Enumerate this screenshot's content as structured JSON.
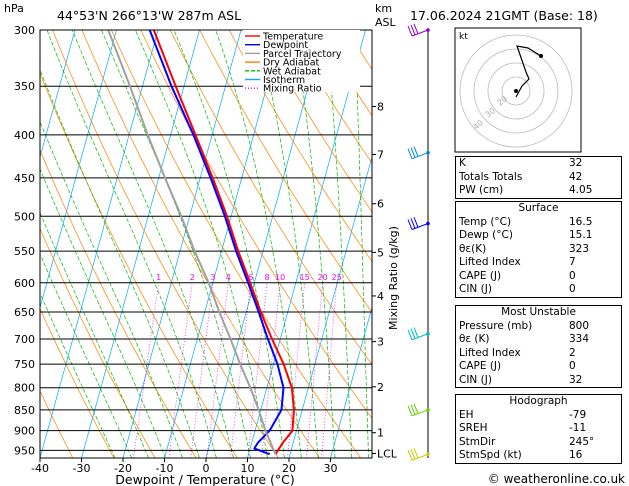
{
  "header": {
    "hpa_label": "hPa",
    "location": "44°53'N  266°13'W  287m  ASL",
    "km_label": "km",
    "asl_label": "ASL",
    "datetime": "17.06.2024  21GMT  (Base: 18)"
  },
  "chart_data": {
    "type": "skew-t",
    "xlabel": "Dewpoint / Temperature (°C)",
    "ylabel": "Mixing Ratio (g/kg)",
    "xlim": [
      -40,
      40
    ],
    "x_ticks": [
      -40,
      -30,
      -20,
      -10,
      0,
      10,
      20,
      30
    ],
    "p_ticks": [
      300,
      350,
      400,
      450,
      500,
      550,
      600,
      650,
      700,
      750,
      800,
      850,
      900,
      950
    ],
    "plim": [
      300,
      970
    ],
    "km_ticks": [
      {
        "label": "8",
        "p": 370
      },
      {
        "label": "7",
        "p": 422
      },
      {
        "label": "6",
        "p": 483
      },
      {
        "label": "5",
        "p": 552
      },
      {
        "label": "4",
        "p": 622
      },
      {
        "label": "3",
        "p": 705
      },
      {
        "label": "2",
        "p": 798
      },
      {
        "label": "1",
        "p": 905
      },
      {
        "label": "LCL",
        "p": 958
      }
    ],
    "mixing_ratio_labels": [
      "1",
      "2",
      "3",
      "4",
      "6",
      "8",
      "10",
      "15",
      "20",
      "25"
    ],
    "legend": [
      "Temperature",
      "Dewpoint",
      "Parcel Trajectory",
      "Dry Adiabat",
      "Wet Adiabat",
      "Isotherm",
      "Mixing Ratio"
    ],
    "colors": {
      "Temperature": "#ff0000",
      "Dewpoint": "#0000ff",
      "Parcel Trajectory": "#a0a0a0",
      "Dry Adiabat": "#ff8000",
      "Wet Adiabat": "#00bb00",
      "Isotherm": "#00aaff",
      "Mixing Ratio": "#ff00ff"
    },
    "series": [
      {
        "name": "Temperature",
        "points": [
          [
            960,
            16.5
          ],
          [
            930,
            17.5
          ],
          [
            900,
            19
          ],
          [
            850,
            18
          ],
          [
            800,
            16
          ],
          [
            750,
            12.5
          ],
          [
            700,
            8
          ],
          [
            650,
            3.5
          ],
          [
            600,
            -1
          ],
          [
            550,
            -6
          ],
          [
            500,
            -11
          ],
          [
            450,
            -17
          ],
          [
            400,
            -24
          ],
          [
            350,
            -32
          ],
          [
            300,
            -41
          ]
        ]
      },
      {
        "name": "Dewpoint",
        "points": [
          [
            960,
            15.1
          ],
          [
            945,
            11
          ],
          [
            930,
            11.5
          ],
          [
            900,
            13.5
          ],
          [
            850,
            15
          ],
          [
            800,
            14
          ],
          [
            750,
            11
          ],
          [
            700,
            7
          ],
          [
            650,
            3
          ],
          [
            600,
            -1.5
          ],
          [
            550,
            -6.5
          ],
          [
            500,
            -11.5
          ],
          [
            450,
            -17.5
          ],
          [
            400,
            -24.5
          ],
          [
            350,
            -33
          ],
          [
            300,
            -42
          ]
        ]
      },
      {
        "name": "Parcel Trajectory",
        "points": [
          [
            960,
            16.5
          ],
          [
            900,
            12.5
          ],
          [
            850,
            9.5
          ],
          [
            800,
            6
          ],
          [
            750,
            2
          ],
          [
            700,
            -2
          ],
          [
            650,
            -6.5
          ],
          [
            600,
            -11
          ],
          [
            550,
            -16.5
          ],
          [
            500,
            -22
          ],
          [
            450,
            -28.5
          ],
          [
            400,
            -35.5
          ],
          [
            350,
            -43
          ],
          [
            300,
            -52
          ]
        ]
      }
    ]
  },
  "hodograph": {
    "label": "kt",
    "ring_labels": [
      "40",
      "30",
      "20"
    ]
  },
  "stats": {
    "k_label": "K",
    "k_value": "32",
    "tt_label": "Totals Totals",
    "tt_value": "42",
    "pw_label": "PW (cm)",
    "pw_value": "4.05"
  },
  "surface": {
    "title": "Surface",
    "temp_label": "Temp (°C)",
    "temp_value": "16.5",
    "dewp_label": "Dewp (°C)",
    "dewp_value": "15.1",
    "theta_label": "θε(K)",
    "theta_value": "323",
    "li_label": "Lifted Index",
    "li_value": "7",
    "cape_label": "CAPE (J)",
    "cape_value": "0",
    "cin_label": "CIN (J)",
    "cin_value": "0"
  },
  "most_unstable": {
    "title": "Most Unstable",
    "pressure_label": "Pressure (mb)",
    "pressure_value": "800",
    "theta_label": "θε (K)",
    "theta_value": "334",
    "li_label": "Lifted Index",
    "li_value": "2",
    "cape_label": "CAPE (J)",
    "cape_value": "0",
    "cin_label": "CIN (J)",
    "cin_value": "32"
  },
  "hodo_table": {
    "title": "Hodograph",
    "eh_label": "EH",
    "eh_value": "-79",
    "sreh_label": "SREH",
    "sreh_value": "-11",
    "stmdir_label": "StmDir",
    "stmdir_value": "245°",
    "stmspd_label": "StmSpd (kt)",
    "stmspd_value": "16"
  },
  "footer": {
    "copyright": "© weatheronline.co.uk"
  }
}
